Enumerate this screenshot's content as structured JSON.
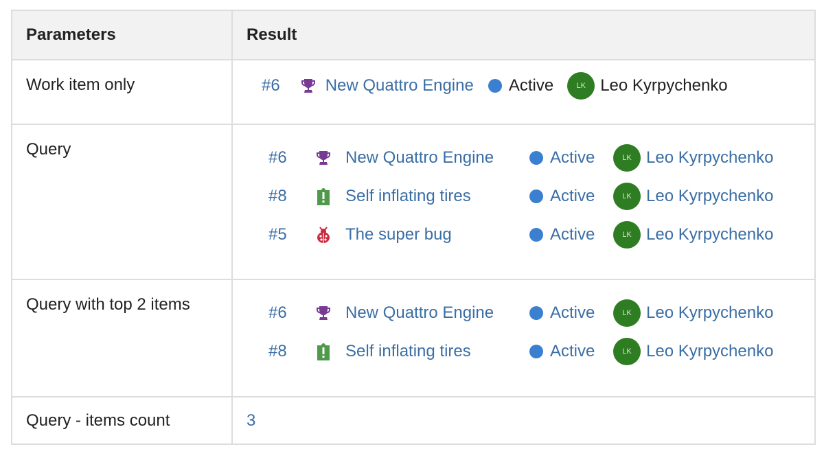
{
  "headers": {
    "params": "Parameters",
    "result": "Result"
  },
  "colors": {
    "link": "#3a6ea5",
    "status_dot": "#3a7fd0",
    "avatar": "#2f7d22",
    "feature": "#773b93",
    "requirement": "#4f9a4a",
    "bug": "#cc293d"
  },
  "rows": [
    {
      "param": "Work item only",
      "items": [
        {
          "id": "#6",
          "icon": "trophy-icon",
          "title": "New Quattro Engine",
          "state": "Active",
          "initials": "LK",
          "assignee": "Leo Kyrpychenko"
        }
      ]
    },
    {
      "param": "Query",
      "items": [
        {
          "id": "#6",
          "icon": "trophy-icon",
          "title": "New Quattro Engine",
          "state": "Active",
          "initials": "LK",
          "assignee": "Leo Kyrpychenko"
        },
        {
          "id": "#8",
          "icon": "clipboard-exclamation-icon",
          "title": "Self inflating tires",
          "state": "Active",
          "initials": "LK",
          "assignee": "Leo Kyrpychenko"
        },
        {
          "id": "#5",
          "icon": "bug-icon",
          "title": "The super bug",
          "state": "Active",
          "initials": "LK",
          "assignee": "Leo Kyrpychenko"
        }
      ]
    },
    {
      "param": "Query with top 2 items",
      "items": [
        {
          "id": "#6",
          "icon": "trophy-icon",
          "title": "New Quattro Engine",
          "state": "Active",
          "initials": "LK",
          "assignee": "Leo Kyrpychenko"
        },
        {
          "id": "#8",
          "icon": "clipboard-exclamation-icon",
          "title": "Self inflating tires",
          "state": "Active",
          "initials": "LK",
          "assignee": "Leo Kyrpychenko"
        }
      ]
    },
    {
      "param": "Query - items count",
      "count": "3"
    }
  ]
}
